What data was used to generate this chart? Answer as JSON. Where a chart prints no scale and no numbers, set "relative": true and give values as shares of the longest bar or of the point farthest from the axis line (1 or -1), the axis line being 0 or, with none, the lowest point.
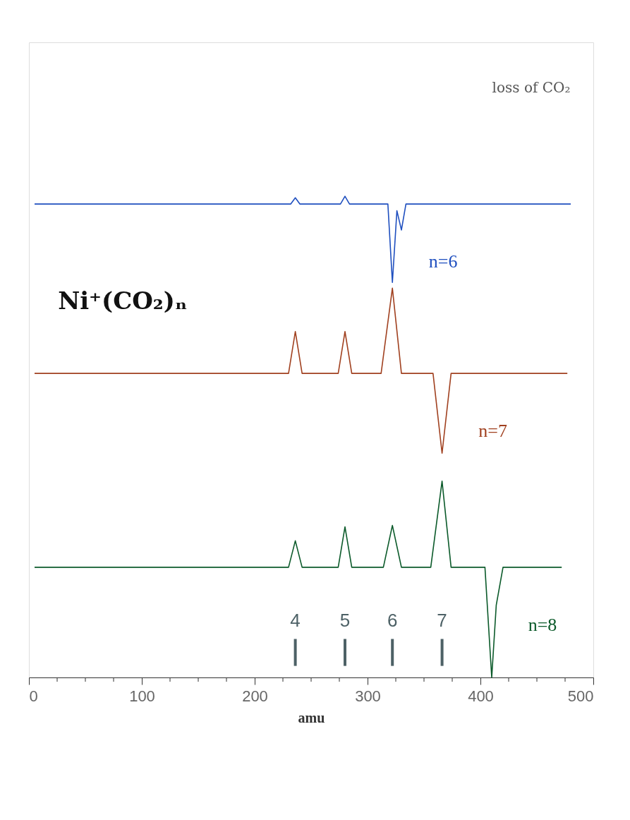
{
  "chart_data": {
    "type": "line",
    "title": "Ni⁺(CO₂)ₙ",
    "xlabel": "amu",
    "relative": true,
    "xlim": [
      0,
      500
    ],
    "xticks": [
      0,
      {
        "value": 25,
        "label": null
      },
      {
        "value": 50,
        "label": null
      },
      {
        "value": 75,
        "label": null
      },
      100,
      {
        "value": 125,
        "label": null
      },
      {
        "value": 150,
        "label": null
      },
      {
        "value": 175,
        "label": null
      },
      200,
      {
        "value": 225,
        "label": null
      },
      {
        "value": 250,
        "label": null
      },
      {
        "value": 275,
        "label": null
      },
      300,
      {
        "value": 325,
        "label": null
      },
      {
        "value": 350,
        "label": null
      },
      {
        "value": 375,
        "label": null
      },
      400,
      {
        "value": 425,
        "label": null
      },
      {
        "value": 450,
        "label": null
      },
      {
        "value": 475,
        "label": null
      },
      500
    ],
    "series": [
      {
        "name": "n=6",
        "color": "#1f4fbf",
        "x": [
          5,
          100,
          200,
          232,
          236,
          240,
          276,
          280,
          284,
          318,
          322,
          326,
          330,
          334,
          480
        ],
        "values": [
          0.984,
          0.984,
          0.984,
          0.984,
          0.997,
          0.984,
          0.984,
          1.0,
          0.984,
          0.984,
          0.821,
          0.97,
          0.93,
          0.984,
          0.984
        ]
      },
      {
        "name": "n=7",
        "color": "#a0401f",
        "x": [
          5,
          100,
          200,
          230,
          236,
          242,
          274,
          280,
          286,
          312,
          322,
          330,
          358,
          366,
          374,
          477
        ],
        "values": [
          0.632,
          0.632,
          0.632,
          0.632,
          0.719,
          0.632,
          0.632,
          0.719,
          0.632,
          0.632,
          0.809,
          0.632,
          0.632,
          0.466,
          0.632,
          0.632
        ]
      },
      {
        "name": "n=8",
        "color": "#0b5a2a",
        "x": [
          5,
          100,
          200,
          230,
          236,
          242,
          274,
          280,
          286,
          314,
          322,
          330,
          356,
          366,
          374,
          404,
          410,
          414,
          420,
          472
        ],
        "values": [
          0.229,
          0.229,
          0.229,
          0.229,
          0.284,
          0.229,
          0.229,
          0.313,
          0.229,
          0.229,
          0.316,
          0.229,
          0.229,
          0.408,
          0.229,
          0.229,
          0.0,
          0.15,
          0.229,
          0.229
        ]
      }
    ],
    "annotations": [
      "loss of CO₂",
      {
        "text": "4",
        "x": 236
      },
      {
        "text": "5",
        "x": 280
      },
      {
        "text": "6",
        "x": 322
      },
      {
        "text": "7",
        "x": 366
      }
    ],
    "grid": false,
    "legend": false,
    "line_style": "solid"
  }
}
